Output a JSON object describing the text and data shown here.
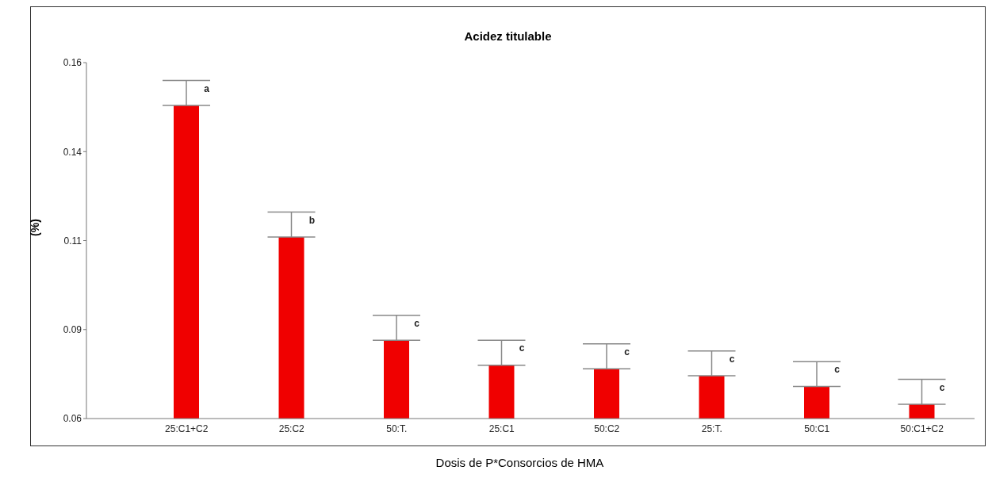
{
  "chart_data": {
    "type": "bar",
    "title": "Acidez titulable",
    "xlabel": "Dosis de P*Consorcios de HMA",
    "ylabel": "(%)",
    "categories": [
      "25:C1+C2",
      "25:C2",
      "50:T.",
      "25:C1",
      "50:C2",
      "25:T.",
      "50:C1",
      "50:C1+C2"
    ],
    "values": [
      0.148,
      0.111,
      0.082,
      0.075,
      0.074,
      0.072,
      0.069,
      0.064
    ],
    "errors": [
      [
        0.148,
        0.155
      ],
      [
        0.111,
        0.118
      ],
      [
        0.082,
        0.089
      ],
      [
        0.075,
        0.082
      ],
      [
        0.074,
        0.081
      ],
      [
        0.072,
        0.079
      ],
      [
        0.069,
        0.076
      ],
      [
        0.064,
        0.071
      ]
    ],
    "color": "#f00000",
    "ylim": [
      0.06,
      0.16
    ],
    "yticks": [
      0.06,
      {
        "value": 0.085,
        "label": "0.09"
      },
      0.11,
      {
        "value": 0.135,
        "label": "0.14"
      },
      0.16
    ],
    "grid": false,
    "legend": false,
    "annotations": [
      {
        "text": "a",
        "x": "25:C1+C2",
        "y": 0.155
      },
      {
        "text": "b",
        "x": "25:C2",
        "y": 0.118
      },
      {
        "text": "c",
        "x": "50:T.",
        "y": 0.089
      },
      {
        "text": "c",
        "x": "25:C1",
        "y": 0.082
      },
      {
        "text": "c",
        "x": "50:C2",
        "y": 0.081
      },
      {
        "text": "c",
        "x": "25:T.",
        "y": 0.079
      },
      {
        "text": "c",
        "x": "50:C1",
        "y": 0.076
      },
      {
        "text": "c",
        "x": "50:C1+C2",
        "y": 0.071
      }
    ]
  }
}
